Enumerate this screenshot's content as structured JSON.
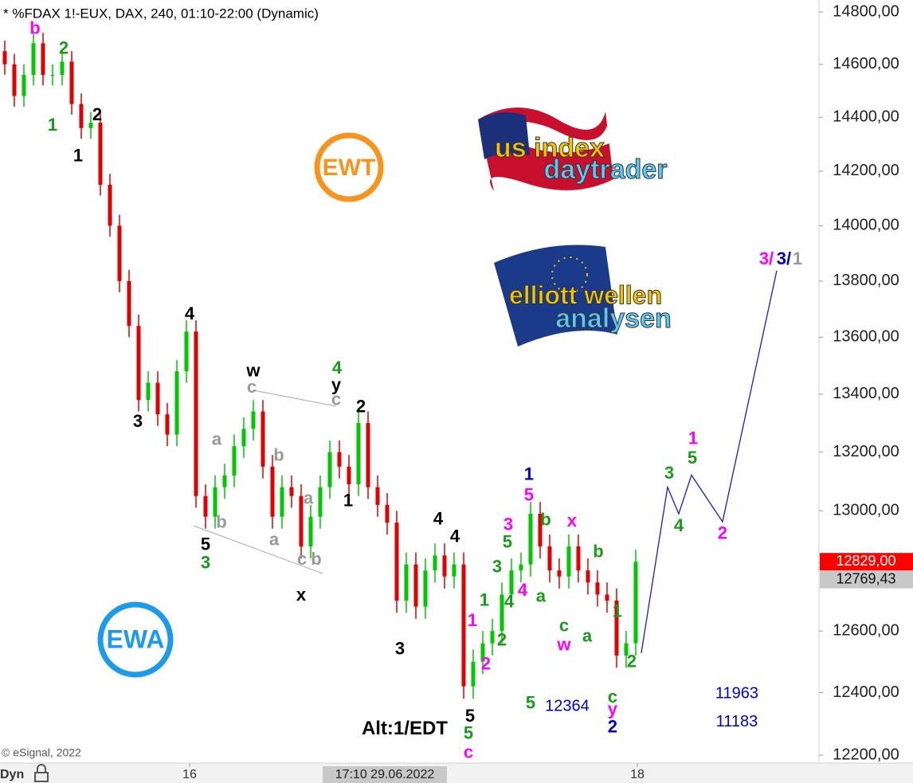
{
  "chart_data": {
    "type": "candlestick",
    "title": "* %FDAX 1!-EUX, DAX, 240, 01:10-22:00 (Dynamic)",
    "copyright": "© eSignal, 2022",
    "mode_label": "Dyn",
    "log": true,
    "up_color": "#00c800",
    "down_color": "#e00000",
    "xlim": [
      -0.5,
      85.17
    ],
    "ylim": [
      12200,
      14800
    ],
    "yticks": [
      {
        "value": 12200,
        "label": "12200,00"
      },
      {
        "value": 12400,
        "label": "12400,00"
      },
      {
        "value": 12600,
        "label": "12600,00"
      },
      {
        "value": 13000,
        "label": "13000,00"
      },
      {
        "value": 13200,
        "label": "13200,00"
      },
      {
        "value": 13400,
        "label": "13400,00"
      },
      {
        "value": 13600,
        "label": "13600,00"
      },
      {
        "value": 13800,
        "label": "13800,00"
      },
      {
        "value": 14000,
        "label": "14000,00"
      },
      {
        "value": 14200,
        "label": "14200,00"
      },
      {
        "value": 14400,
        "label": "14400,00"
      },
      {
        "value": 14600,
        "label": "14600,00"
      },
      {
        "value": 14800,
        "label": "14800,00"
      }
    ],
    "xticks": [
      {
        "value": 19.33,
        "label": "16"
      },
      {
        "value": 66.17,
        "label": "18"
      }
    ],
    "cursor": {
      "value": 39.75,
      "label": "17:10 29.06.2022"
    },
    "last_price": {
      "value": 12829,
      "label": "12829,00",
      "color": "#ff0000"
    },
    "ref_price": {
      "value": 12769.43,
      "label": "12769,43",
      "color": "#c8c8c8"
    },
    "ohlc": [
      [
        14650,
        14690,
        14560,
        14600
      ],
      [
        14600,
        14640,
        14440,
        14480
      ],
      [
        14480,
        14600,
        14440,
        14560
      ],
      [
        14560,
        14720,
        14520,
        14680
      ],
      [
        14680,
        14720,
        14520,
        14560
      ],
      [
        14560,
        14600,
        14520,
        14560
      ],
      [
        14560,
        14650,
        14520,
        14610
      ],
      [
        14610,
        14650,
        14410,
        14450
      ],
      [
        14450,
        14490,
        14320,
        14360
      ],
      [
        14360,
        14420,
        14320,
        14380
      ],
      [
        14380,
        14420,
        14110,
        14150
      ],
      [
        14150,
        14190,
        13960,
        14000
      ],
      [
        14000,
        14040,
        13760,
        13800
      ],
      [
        13800,
        13840,
        13600,
        13640
      ],
      [
        13640,
        13680,
        13340,
        13380
      ],
      [
        13380,
        13480,
        13340,
        13440
      ],
      [
        13440,
        13480,
        13290,
        13330
      ],
      [
        13330,
        13370,
        13220,
        13260
      ],
      [
        13260,
        13520,
        13220,
        13480
      ],
      [
        13480,
        13660,
        13440,
        13620
      ],
      [
        13620,
        13660,
        13010,
        13050
      ],
      [
        13050,
        13090,
        12940,
        12980
      ],
      [
        12980,
        13120,
        12940,
        13080
      ],
      [
        13080,
        13160,
        13040,
        13120
      ],
      [
        13120,
        13260,
        13080,
        13220
      ],
      [
        13220,
        13320,
        13180,
        13280
      ],
      [
        13280,
        13380,
        13240,
        13340
      ],
      [
        13340,
        13380,
        13110,
        13150
      ],
      [
        13150,
        13190,
        12940,
        12980
      ],
      [
        12980,
        13120,
        12940,
        13080
      ],
      [
        13080,
        13120,
        13010,
        13050
      ],
      [
        13050,
        13090,
        12840,
        12880
      ],
      [
        12880,
        13020,
        12840,
        12980
      ],
      [
        12980,
        13120,
        12940,
        13080
      ],
      [
        13080,
        13240,
        13040,
        13200
      ],
      [
        13200,
        13240,
        13110,
        13150
      ],
      [
        13150,
        13190,
        13050,
        13090
      ],
      [
        13090,
        13340,
        13050,
        13300
      ],
      [
        13300,
        13340,
        13040,
        13080
      ],
      [
        13080,
        13120,
        12980,
        13020
      ],
      [
        13020,
        13060,
        12920,
        12960
      ],
      [
        12960,
        13000,
        12660,
        12700
      ],
      [
        12700,
        12860,
        12660,
        12820
      ],
      [
        12820,
        12860,
        12640,
        12680
      ],
      [
        12680,
        12840,
        12640,
        12800
      ],
      [
        12800,
        12890,
        12760,
        12850
      ],
      [
        12850,
        12890,
        12740,
        12780
      ],
      [
        12780,
        12860,
        12740,
        12820
      ],
      [
        12820,
        12860,
        12380,
        12420
      ],
      [
        12420,
        12540,
        12380,
        12500
      ],
      [
        12500,
        12600,
        12460,
        12560
      ],
      [
        12560,
        12640,
        12520,
        12600
      ],
      [
        12600,
        12760,
        12560,
        12720
      ],
      [
        12720,
        12840,
        12680,
        12800
      ],
      [
        12800,
        12860,
        12760,
        12820
      ],
      [
        12820,
        13030,
        12780,
        12990
      ],
      [
        12990,
        13030,
        12840,
        12880
      ],
      [
        12880,
        12920,
        12760,
        12800
      ],
      [
        12800,
        12840,
        12740,
        12780
      ],
      [
        12780,
        12920,
        12740,
        12880
      ],
      [
        12880,
        12920,
        12760,
        12800
      ],
      [
        12800,
        12840,
        12720,
        12760
      ],
      [
        12760,
        12800,
        12680,
        12720
      ],
      [
        12720,
        12760,
        12660,
        12700
      ],
      [
        12700,
        12740,
        12480,
        12520
      ],
      [
        12520,
        12600,
        12480,
        12560
      ],
      [
        12560,
        12869,
        12520,
        12829
      ]
    ],
    "projection": {
      "color": "#1a1acc",
      "x": [
        66.58,
        69.33,
        70.5,
        71.83,
        75.08,
        80.75
      ],
      "y": [
        12528,
        13080,
        12990,
        13121,
        12963,
        13837
      ]
    },
    "annotations": [
      {
        "text": "b",
        "color": "#ff00ff",
        "x": 3.17,
        "y": 14733
      },
      {
        "text": "2",
        "color": "#1a9a1a",
        "x": 6.17,
        "y": 14657
      },
      {
        "text": "1",
        "color": "#1a9a1a",
        "x": 5,
        "y": 14368
      },
      {
        "text": "2",
        "color": "#000000",
        "x": 9.67,
        "y": 14407
      },
      {
        "text": "1",
        "color": "#000000",
        "x": 7.67,
        "y": 14253
      },
      {
        "text": "4",
        "color": "#000000",
        "x": 19.33,
        "y": 13680
      },
      {
        "text": "3",
        "color": "#000000",
        "x": 13.92,
        "y": 13303
      },
      {
        "text": "w",
        "color": "#000000",
        "x": 26,
        "y": 13478
      },
      {
        "text": "c",
        "color": "#999999",
        "x": 25.83,
        "y": 13422
      },
      {
        "text": "4",
        "color": "#1a9a1a",
        "x": 34.75,
        "y": 13489
      },
      {
        "text": "y",
        "color": "#000000",
        "x": 34.67,
        "y": 13428
      },
      {
        "text": "c",
        "color": "#999999",
        "x": 34.67,
        "y": 13378
      },
      {
        "text": "2",
        "color": "#000000",
        "x": 37.25,
        "y": 13353
      },
      {
        "text": "a",
        "color": "#999999",
        "x": 22.17,
        "y": 13240
      },
      {
        "text": "b",
        "color": "#999999",
        "x": 28.67,
        "y": 13186
      },
      {
        "text": "a",
        "color": "#999999",
        "x": 31.75,
        "y": 13039
      },
      {
        "text": "1",
        "color": "#000000",
        "x": 35.92,
        "y": 13031
      },
      {
        "text": "b",
        "color": "#999999",
        "x": 22.67,
        "y": 12958
      },
      {
        "text": "a",
        "color": "#999999",
        "x": 28.17,
        "y": 12899
      },
      {
        "text": "5",
        "color": "#000000",
        "x": 21,
        "y": 12883
      },
      {
        "text": "3",
        "color": "#1a9a1a",
        "x": 21,
        "y": 12822
      },
      {
        "text": "c",
        "color": "#999999",
        "x": 31.08,
        "y": 12835
      },
      {
        "text": "b",
        "color": "#999999",
        "x": 32.58,
        "y": 12835
      },
      {
        "text": "x",
        "color": "#000000",
        "x": 31,
        "y": 12716
      },
      {
        "text": "4",
        "color": "#000000",
        "x": 45.33,
        "y": 12969
      },
      {
        "text": "4",
        "color": "#000000",
        "x": 47.08,
        "y": 12910
      },
      {
        "text": "3",
        "color": "#000000",
        "x": 41.33,
        "y": 12539
      },
      {
        "text": "5",
        "color": "#000000",
        "x": 48.67,
        "y": 12322
      },
      {
        "text": "5",
        "color": "#1a9a1a",
        "x": 48.5,
        "y": 12267
      },
      {
        "text": "c",
        "color": "#ff00ff",
        "x": 48.5,
        "y": 12206
      },
      {
        "text": "Alt:1/EDT",
        "color": "#000000",
        "x": 41.83,
        "y": 12282
      },
      {
        "text": "1",
        "color": "#ff00ff",
        "x": 48.92,
        "y": 12632
      },
      {
        "text": "2",
        "color": "#ff00ff",
        "x": 50.33,
        "y": 12489
      },
      {
        "text": "1",
        "color": "#1a9a1a",
        "x": 50.17,
        "y": 12698
      },
      {
        "text": "2",
        "color": "#1a9a1a",
        "x": 52,
        "y": 12567
      },
      {
        "text": "4",
        "color": "#1a9a1a",
        "x": 52.75,
        "y": 12693
      },
      {
        "text": "3",
        "color": "#1a9a1a",
        "x": 51.5,
        "y": 12809
      },
      {
        "text": "4",
        "color": "#ff00ff",
        "x": 54.17,
        "y": 12731
      },
      {
        "text": "3",
        "color": "#ff00ff",
        "x": 52.67,
        "y": 12950
      },
      {
        "text": "5",
        "color": "#1a9a1a",
        "x": 52.58,
        "y": 12891
      },
      {
        "text": "5",
        "color": "#ff00ff",
        "x": 54.83,
        "y": 13050
      },
      {
        "text": "1",
        "color": "#0000cc",
        "x": 54.83,
        "y": 13121
      },
      {
        "text": "b",
        "color": "#1a9a1a",
        "x": 56.58,
        "y": 12966
      },
      {
        "text": "a",
        "color": "#1a9a1a",
        "x": 56.08,
        "y": 12711
      },
      {
        "text": "x",
        "color": "#ff00ff",
        "x": 59.33,
        "y": 12963
      },
      {
        "text": "b",
        "color": "#1a9a1a",
        "x": 62.08,
        "y": 12859
      },
      {
        "text": "c",
        "color": "#1a9a1a",
        "x": 58.5,
        "y": 12614
      },
      {
        "text": "w",
        "color": "#ff00ff",
        "x": 58.5,
        "y": 12552
      },
      {
        "text": "a",
        "color": "#1a9a1a",
        "x": 60.92,
        "y": 12581
      },
      {
        "text": "1",
        "color": "#1a9a1a",
        "x": 64.08,
        "y": 12662
      },
      {
        "text": "2",
        "color": "#1a9a1a",
        "x": 65.58,
        "y": 12497
      },
      {
        "text": "c",
        "color": "#1a9a1a",
        "x": 63.58,
        "y": 12383
      },
      {
        "text": "y",
        "color": "#ff00ff",
        "x": 63.58,
        "y": 12343
      },
      {
        "text": "2",
        "color": "#0000cc",
        "x": 63.58,
        "y": 12287
      },
      {
        "text": "5",
        "color": "#1a9a1a",
        "x": 55,
        "y": 12363
      },
      {
        "text": "3",
        "color": "#1a9a1a",
        "x": 69.5,
        "y": 13124
      },
      {
        "text": "4",
        "color": "#1a9a1a",
        "x": 70.5,
        "y": 12946
      },
      {
        "text": "5",
        "color": "#1a9a1a",
        "x": 71.92,
        "y": 13176
      },
      {
        "text": "1",
        "color": "#ff00ff",
        "x": 72,
        "y": 13243
      },
      {
        "text": "2",
        "color": "#ff00ff",
        "x": 75.08,
        "y": 12921
      },
      {
        "text": "3/",
        "color": "#ff00ff",
        "x": 79.67,
        "y": 13877
      },
      {
        "text": "3/",
        "color": "#0000cc",
        "x": 81.5,
        "y": 13877
      },
      {
        "text": "1",
        "color": "#999999",
        "x": 82.92,
        "y": 13877
      }
    ],
    "price_notes": [
      {
        "value": 12364,
        "x": 58.83,
        "y": 12355
      },
      {
        "value": 11963,
        "x": 76.58,
        "y": 12396
      },
      {
        "value": 11183,
        "x": 76.58,
        "y": 12305
      }
    ],
    "logos": {
      "ewt": "EWT",
      "ewa": "EWA",
      "us1": "us index",
      "us2": "daytrader",
      "eu1": "elliott wellen",
      "eu2": "analysen"
    }
  }
}
